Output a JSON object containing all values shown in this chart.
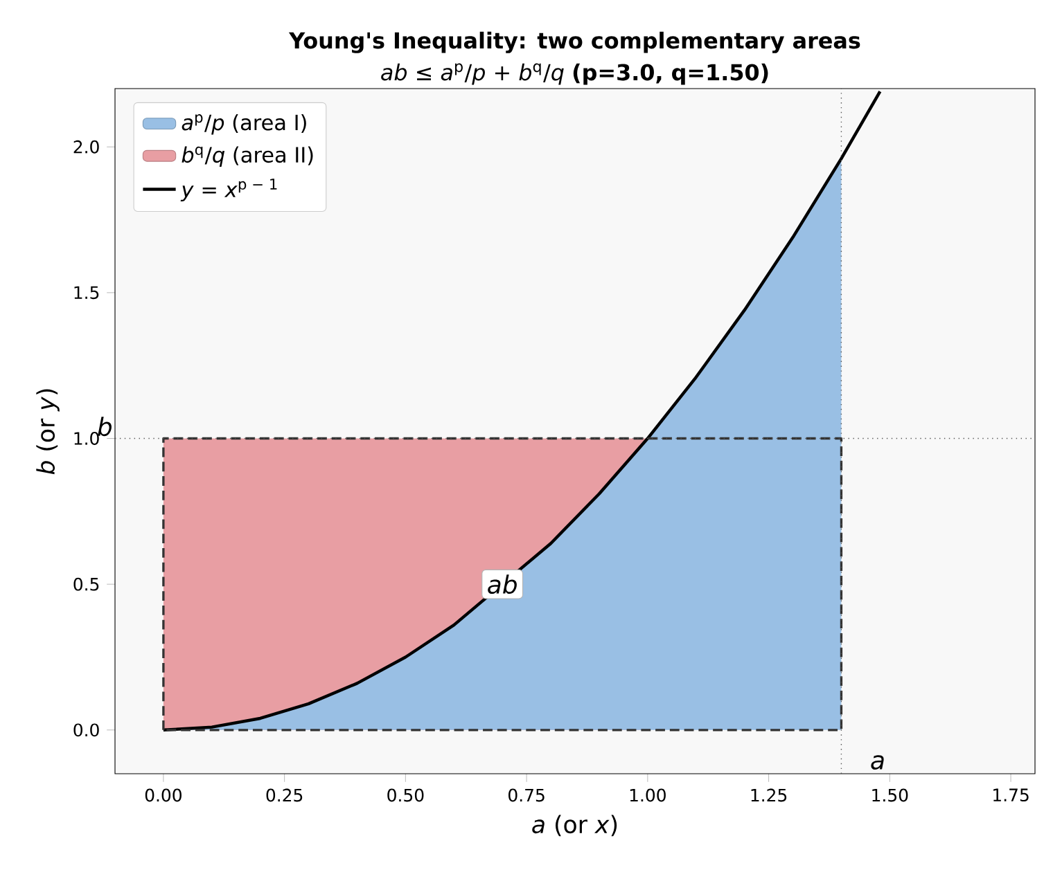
{
  "chart_data": {
    "type": "area",
    "title": "Young's Inequality: two complementary areas",
    "subtitle": "*ab* ≤ *a*$^{p}$/*p* + *b*$^{q}$/*q*  **(p=3.0, q=1.50)**",
    "xlabel": "*a*  (or *x*)",
    "ylabel": "*b*  (or *y*)",
    "xlim": [
      -0.1,
      1.8
    ],
    "ylim": [
      -0.15,
      2.2
    ],
    "xticks": [
      {
        "value": 0,
        "label": "0.00"
      },
      {
        "value": 0.25,
        "label": "0.25"
      },
      {
        "value": 0.5,
        "label": "0.50"
      },
      {
        "value": 0.75,
        "label": "0.75"
      },
      {
        "value": 1,
        "label": "1.00"
      },
      {
        "value": 1.25,
        "label": "1.25"
      },
      {
        "value": 1.5,
        "label": "1.50"
      },
      {
        "value": 1.75,
        "label": "1.75"
      }
    ],
    "yticks": [
      {
        "value": 0,
        "label": "0.0"
      },
      {
        "value": 0.5,
        "label": "0.5"
      },
      {
        "value": 1,
        "label": "1.0"
      },
      {
        "value": 1.5,
        "label": "1.5"
      },
      {
        "value": 2,
        "label": "2.0"
      }
    ],
    "legend": "top left",
    "grid": false,
    "series": [
      {
        "name": "*a*$^{p}$/*p*  (area I)",
        "color": "#99bfe4",
        "x": [
          0,
          0.1,
          0.2,
          0.3,
          0.4,
          0.5,
          0.6,
          0.8,
          0.9,
          1.0,
          1.1,
          1.2,
          1.3,
          1.4
        ],
        "values": [
          0,
          0.01,
          0.04,
          0.09,
          0.16,
          0.25,
          0.36,
          0.64,
          0.81,
          1.0,
          1.21,
          1.44,
          1.69,
          1.96
        ]
      },
      {
        "name": "*b*$^{q}$/*q*  (area II)",
        "color": "#e89ea3",
        "x": [
          0,
          1.0
        ],
        "values": [
          1,
          1
        ]
      },
      {
        "name": "*y* = *x*$^{p − 1}$",
        "type": "line",
        "color": "#000000",
        "line_style": "solid",
        "x": [
          0,
          0.1,
          0.2,
          0.3,
          0.4,
          0.5,
          0.6,
          0.8,
          0.9,
          1.0,
          1.1,
          1.2,
          1.3,
          1.4,
          1.48
        ],
        "values": [
          0,
          0.01,
          0.04,
          0.09,
          0.16,
          0.25,
          0.36,
          0.64,
          0.81,
          1.0,
          1.21,
          1.44,
          1.69,
          1.96,
          2.19
        ]
      }
    ],
    "ref_lines": [
      {
        "axis": "x",
        "value": 1.4,
        "label": "a",
        "color": "#555555",
        "line_style": "dotted"
      },
      {
        "axis": "y",
        "value": 1.0,
        "label": "b",
        "color": "#555555",
        "line_style": "dotted"
      }
    ],
    "annotations": [
      {
        "text": "ab",
        "x": 0.7,
        "y": 0.5
      }
    ]
  }
}
